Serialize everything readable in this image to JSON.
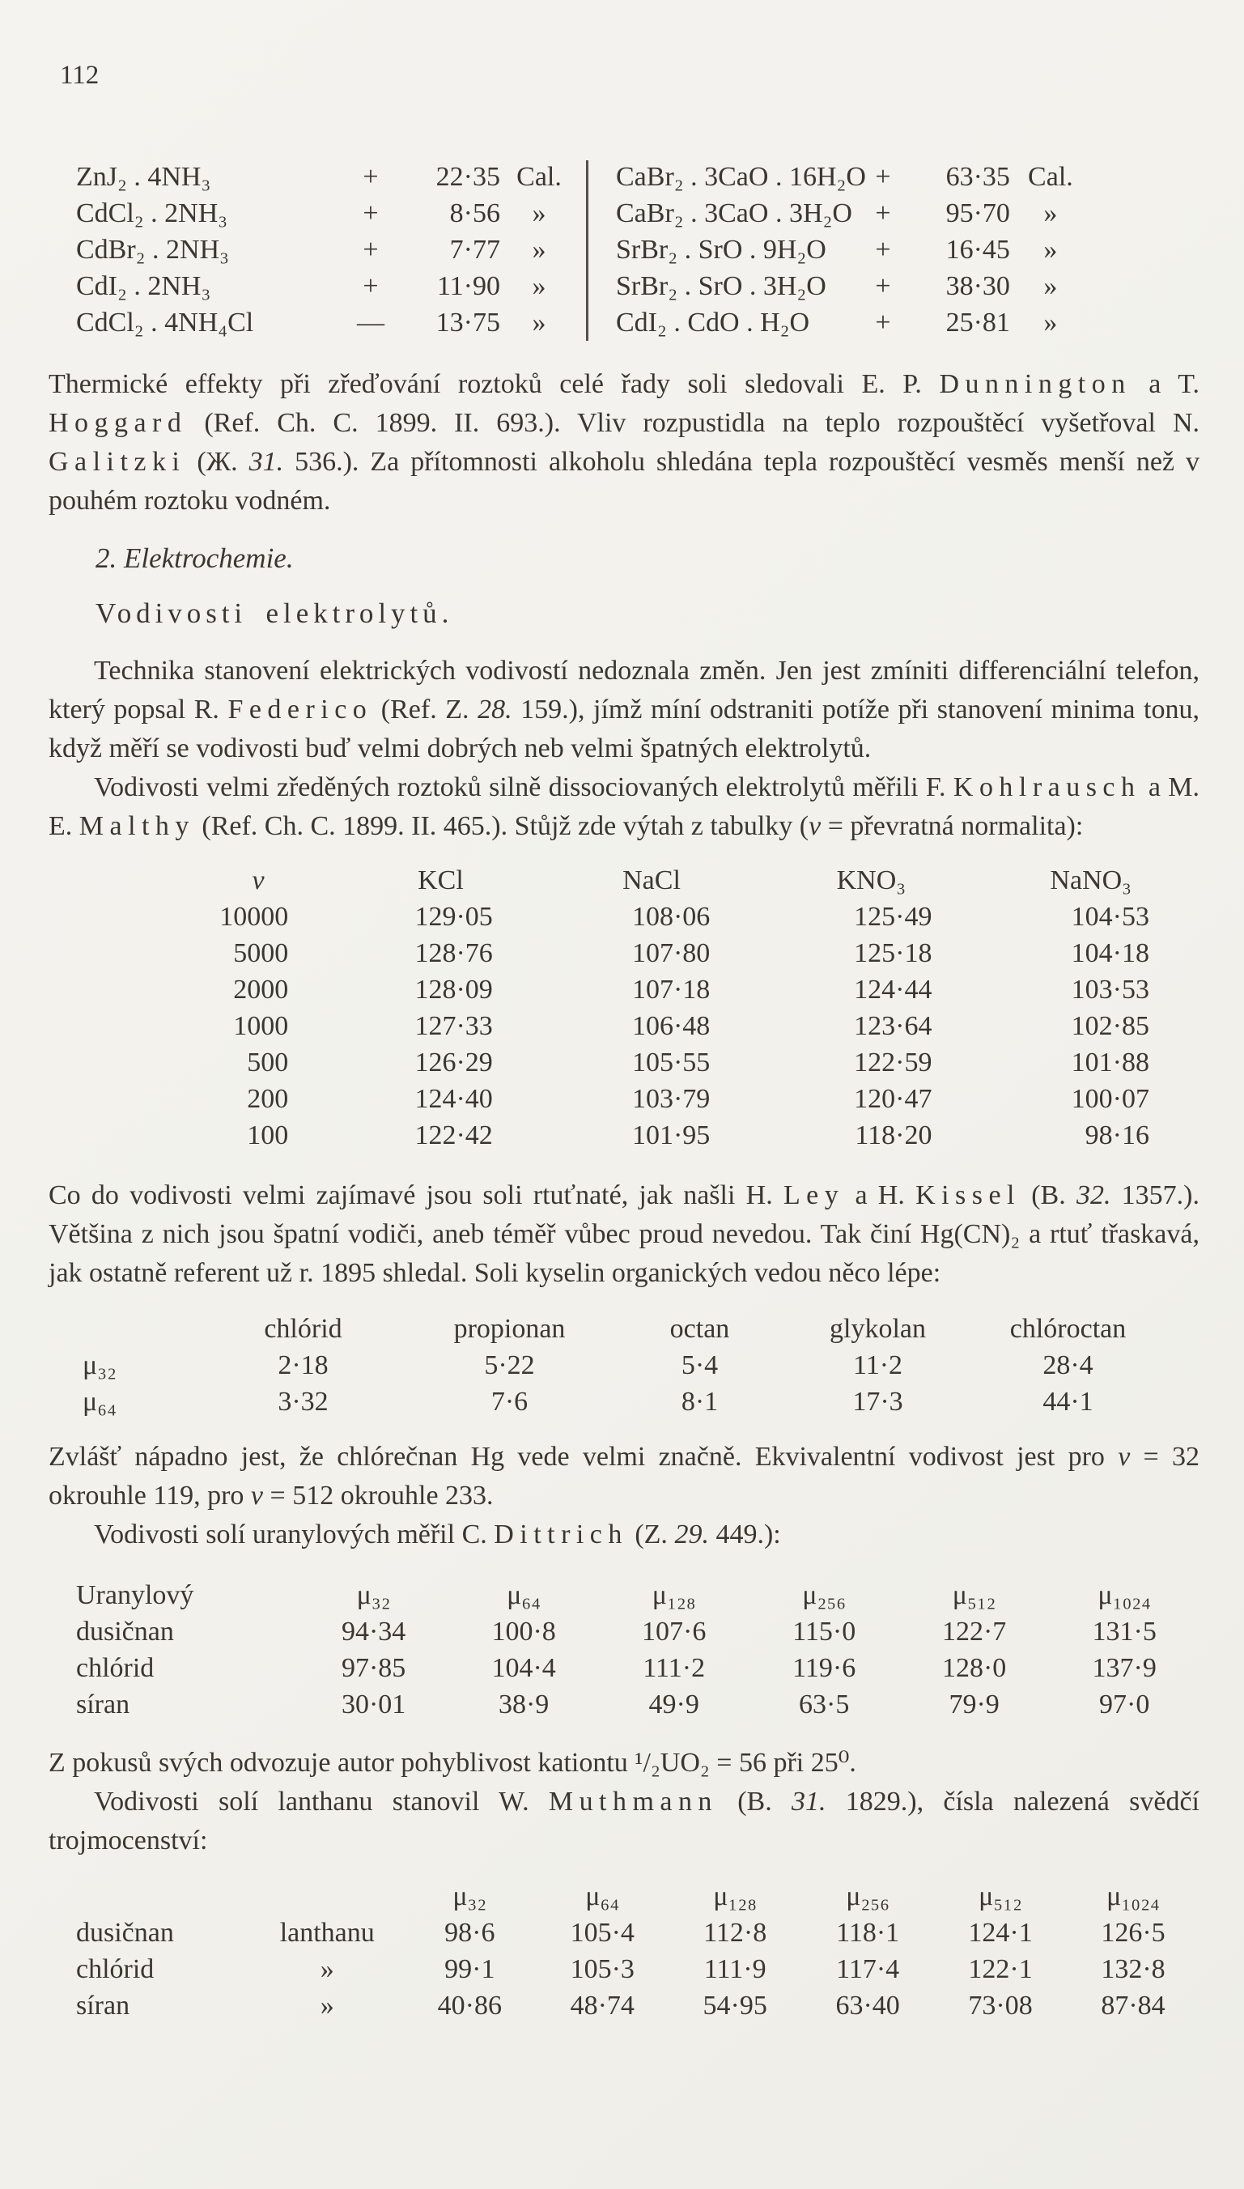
{
  "page": {
    "number": "112"
  },
  "heat_table": {
    "left": {
      "rows": [
        [
          "ZnJ₂ . 4NH₃",
          "+",
          "22·35",
          "Cal."
        ],
        [
          "CdCl₂ . 2NH₃",
          "+",
          "8·56",
          "»"
        ],
        [
          "CdBr₂ . 2NH₃",
          "+",
          "7·77",
          "»"
        ],
        [
          "CdI₂ . 2NH₃",
          "+",
          "11·90",
          "»"
        ],
        [
          "CdCl₂ . 4NH₄Cl",
          "—",
          "13·75",
          "»"
        ]
      ]
    },
    "right": {
      "rows": [
        [
          "CaBr₂ . 3CaO . 16H₂O",
          "+",
          "63·35",
          "Cal."
        ],
        [
          "CaBr₂ . 3CaO . 3H₂O",
          "+",
          "95·70",
          "»"
        ],
        [
          "SrBr₂ . SrO . 9H₂O",
          "+",
          "16·45",
          "»"
        ],
        [
          "SrBr₂ . SrO . 3H₂O",
          "+",
          "38·30",
          "»"
        ],
        [
          "CdI₂ . CdO . H₂O",
          "+",
          "25·81",
          "»"
        ]
      ]
    }
  },
  "section": {
    "title": "2. Elektrochemie."
  },
  "subsection": {
    "title": "Vodivosti elektrolytů."
  },
  "paragraphs": {
    "p1": [
      {
        "t": "Thermické effekty při zřeďování roztoků celé řady soli sledovali E. P. ",
        "s": "n"
      },
      {
        "t": "Dunnington",
        "s": "sp"
      },
      {
        "t": " a T. ",
        "s": "n"
      },
      {
        "t": "Hoggard",
        "s": "sp"
      },
      {
        "t": " (Ref. Ch. C. 1899. II. 693.). Vliv rozpustidla na teplo rozpouštěcí vyšetřoval N. ",
        "s": "n"
      },
      {
        "t": "Galitzki",
        "s": "sp"
      },
      {
        "t": " (Ж. ",
        "s": "n"
      },
      {
        "t": "31.",
        "s": "i"
      },
      {
        "t": " 536.). Za přítomnosti alkoholu shledána tepla rozpouštěcí vesměs menší než v pouhém roztoku vodném.",
        "s": "n"
      }
    ],
    "p2": [
      {
        "t": "Technika stanovení elektrických vodivostí nedoznala změn. Jen jest zmíniti differenciální telefon, který popsal R. ",
        "s": "n"
      },
      {
        "t": "Federico",
        "s": "sp"
      },
      {
        "t": " (Ref. Z. ",
        "s": "n"
      },
      {
        "t": "28.",
        "s": "i"
      },
      {
        "t": " 159.), jímž míní odstraniti potíže při stanovení minima tonu, když měří se vodivosti buď velmi dobrých neb velmi špatných elektrolytů.",
        "s": "n"
      }
    ],
    "p3": [
      {
        "t": "Vodivosti velmi zředěných roztoků silně dissociovaných elektrolytů měřili F. ",
        "s": "n"
      },
      {
        "t": "Kohlrausch",
        "s": "sp"
      },
      {
        "t": " a M. E. ",
        "s": "n"
      },
      {
        "t": "Malthy",
        "s": "sp"
      },
      {
        "t": " (Ref. Ch. C. 1899. II. 465.). Stůjž zde výtah z tabulky (",
        "s": "n"
      },
      {
        "t": "v",
        "s": "i"
      },
      {
        "t": " = převratná normalita):",
        "s": "n"
      }
    ],
    "p4": [
      {
        "t": "Co do vodivosti velmi zajímavé jsou soli rtuťnaté, jak našli H. ",
        "s": "n"
      },
      {
        "t": "Ley",
        "s": "sp"
      },
      {
        "t": " a H. ",
        "s": "n"
      },
      {
        "t": "Kissel",
        "s": "sp"
      },
      {
        "t": " (B. ",
        "s": "n"
      },
      {
        "t": "32.",
        "s": "i"
      },
      {
        "t": " 1357.). Většina z nich jsou špatní vodiči, aneb téměř vůbec proud nevedou. Tak činí Hg(CN)₂ a rtuť třaskavá, jak ostatně referent už r. 1895 shledal. Soli kyselin organických vedou něco lépe:",
        "s": "n"
      }
    ],
    "p5": [
      {
        "t": "Zvlášť nápadno jest, že chlórečnan Hg vede velmi značně. Ekvivalentní vodivost jest pro ",
        "s": "n"
      },
      {
        "t": "v",
        "s": "i"
      },
      {
        "t": " = 32 okrouhle 119, pro ",
        "s": "n"
      },
      {
        "t": "v",
        "s": "i"
      },
      {
        "t": " = 512 okrouhle 233.",
        "s": "n"
      }
    ],
    "p6": [
      {
        "t": "Vodivosti solí uranylových měřil C. ",
        "s": "n"
      },
      {
        "t": "Dittrich",
        "s": "sp"
      },
      {
        "t": " (Z. ",
        "s": "n"
      },
      {
        "t": "29.",
        "s": "i"
      },
      {
        "t": " 449.):",
        "s": "n"
      }
    ],
    "p7": [
      {
        "t": "Z pokusů svých odvozuje autor pohyblivost kationtu ¹/₂UO₂ = 56 při 25⁰.",
        "s": "n"
      }
    ],
    "p8": [
      {
        "t": "Vodivosti solí lanthanu stanovil W. ",
        "s": "n"
      },
      {
        "t": "Muthmann",
        "s": "sp"
      },
      {
        "t": " (B. ",
        "s": "n"
      },
      {
        "t": "31.",
        "s": "i"
      },
      {
        "t": " 1829.), čísla nalezená svědčí trojmocenství:",
        "s": "n"
      }
    ]
  },
  "tables": {
    "conductivity": {
      "headers": [
        "v",
        "KCl",
        "NaCl",
        "KNO₃",
        "NaNO₃"
      ],
      "rows": [
        [
          "10000",
          "129·05",
          "108·06",
          "125·49",
          "104·53"
        ],
        [
          "5000",
          "128·76",
          "107·80",
          "125·18",
          "104·18"
        ],
        [
          "2000",
          "128·09",
          "107·18",
          "124·44",
          "103·53"
        ],
        [
          "1000",
          "127·33",
          "106·48",
          "123·64",
          "102·85"
        ],
        [
          "500",
          "126·29",
          "105·55",
          "122·59",
          "101·88"
        ],
        [
          "200",
          "124·40",
          "103·79",
          "120·47",
          "100·07"
        ],
        [
          "100",
          "122·42",
          "101·95",
          "118·20",
          "98·16"
        ]
      ]
    },
    "organic": {
      "headers": [
        "",
        "chlórid",
        "propionan",
        "octan",
        "glykolan",
        "chlóroctan"
      ],
      "rows": [
        [
          "μ₃₂",
          "2·18",
          "5·22",
          "5·4",
          "11·2",
          "28·4"
        ],
        [
          "μ₆₄",
          "3·32",
          "7·6",
          "8·1",
          "17·3",
          "44·1"
        ]
      ]
    },
    "uranyl": {
      "headers": [
        "Uranylový",
        "μ₃₂",
        "μ₆₄",
        "μ₁₂₈",
        "μ₂₅₆",
        "μ₅₁₂",
        "μ₁₀₂₄"
      ],
      "rows": [
        [
          "dusičnan",
          "94·34",
          "100·8",
          "107·6",
          "115·0",
          "122·7",
          "131·5"
        ],
        [
          "chlórid",
          "97·85",
          "104·4",
          "111·2",
          "119·6",
          "128·0",
          "137·9"
        ],
        [
          "síran",
          "30·01",
          "38·9",
          "49·9",
          "63·5",
          "79·9",
          "97·0"
        ]
      ]
    },
    "lanthanum": {
      "headers": [
        "",
        "",
        "μ₃₂",
        "μ₆₄",
        "μ₁₂₈",
        "μ₂₅₆",
        "μ₅₁₂",
        "μ₁₀₂₄"
      ],
      "rows": [
        [
          "dusičnan",
          "lanthanu",
          "98·6",
          "105·4",
          "112·8",
          "118·1",
          "124·1",
          "126·5"
        ],
        [
          "chlórid",
          "»",
          "99·1",
          "105·3",
          "111·9",
          "117·4",
          "122·1",
          "132·8"
        ],
        [
          "síran",
          "»",
          "40·86",
          "48·74",
          "54·95",
          "63·40",
          "73·08",
          "87·84"
        ]
      ]
    }
  }
}
